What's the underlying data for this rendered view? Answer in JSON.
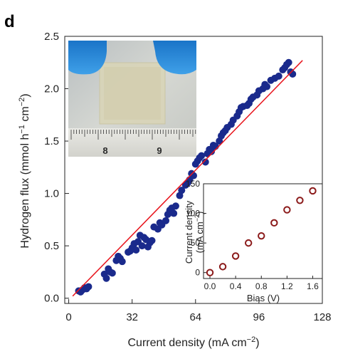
{
  "panel_label": "d",
  "chart_data": [
    {
      "type": "scatter",
      "title": "",
      "xlabel": "Current density (mA cm⁻²)",
      "ylabel": "Hydrogen flux (mmol h⁻¹ cm⁻²)",
      "xlim": [
        -2,
        128
      ],
      "ylim": [
        -0.05,
        2.5
      ],
      "xticks": [
        0,
        32,
        64,
        96,
        128
      ],
      "yticks": [
        0.0,
        0.5,
        1.0,
        1.5,
        2.0,
        2.5
      ],
      "xtick_labels": [
        "0",
        "32",
        "64",
        "96",
        "128"
      ],
      "ytick_labels": [
        "0.0",
        "0.5",
        "1.0",
        "1.5",
        "2.0",
        "2.5"
      ],
      "marker_color": "#1a2a8c",
      "line_color": "#e8141c",
      "fit_line": {
        "x": [
          2,
          118
        ],
        "y": [
          0.02,
          2.27
        ]
      },
      "points": [
        [
          5,
          0.07
        ],
        [
          6,
          0.06
        ],
        [
          7,
          0.08
        ],
        [
          8,
          0.1
        ],
        [
          9,
          0.09
        ],
        [
          10,
          0.11
        ],
        [
          18,
          0.23
        ],
        [
          19,
          0.19
        ],
        [
          20,
          0.28
        ],
        [
          21,
          0.25
        ],
        [
          22,
          0.24
        ],
        [
          24,
          0.36
        ],
        [
          25,
          0.4
        ],
        [
          26,
          0.38
        ],
        [
          27,
          0.35
        ],
        [
          30,
          0.44
        ],
        [
          31,
          0.45
        ],
        [
          32,
          0.48
        ],
        [
          33,
          0.52
        ],
        [
          34,
          0.46
        ],
        [
          35,
          0.54
        ],
        [
          36,
          0.6
        ],
        [
          37,
          0.5
        ],
        [
          38,
          0.58
        ],
        [
          39,
          0.56
        ],
        [
          40,
          0.49
        ],
        [
          41,
          0.53
        ],
        [
          42,
          0.55
        ],
        [
          43,
          0.68
        ],
        [
          45,
          0.66
        ],
        [
          46,
          0.72
        ],
        [
          47,
          0.7
        ],
        [
          49,
          0.74
        ],
        [
          50,
          0.8
        ],
        [
          51,
          0.84
        ],
        [
          52,
          0.86
        ],
        [
          53,
          0.81
        ],
        [
          54,
          0.88
        ],
        [
          56,
          0.98
        ],
        [
          57,
          1.03
        ],
        [
          59,
          1.08
        ],
        [
          60,
          1.1
        ],
        [
          61,
          1.13
        ],
        [
          62,
          1.19
        ],
        [
          63,
          1.17
        ],
        [
          64,
          1.28
        ],
        [
          65,
          1.31
        ],
        [
          66,
          1.34
        ],
        [
          67,
          1.36
        ],
        [
          69,
          1.3
        ],
        [
          70,
          1.38
        ],
        [
          71,
          1.42
        ],
        [
          72,
          1.4
        ],
        [
          73,
          1.46
        ],
        [
          74,
          1.45
        ],
        [
          76,
          1.5
        ],
        [
          77,
          1.55
        ],
        [
          78,
          1.58
        ],
        [
          79,
          1.6
        ],
        [
          80,
          1.63
        ],
        [
          82,
          1.66
        ],
        [
          83,
          1.7
        ],
        [
          85,
          1.74
        ],
        [
          86,
          1.78
        ],
        [
          87,
          1.82
        ],
        [
          88,
          1.83
        ],
        [
          90,
          1.84
        ],
        [
          91,
          1.86
        ],
        [
          92,
          1.9
        ],
        [
          93,
          1.92
        ],
        [
          95,
          1.94
        ],
        [
          96,
          1.98
        ],
        [
          98,
          2.0
        ],
        [
          99,
          2.04
        ],
        [
          100,
          2.02
        ],
        [
          102,
          2.08
        ],
        [
          104,
          2.1
        ],
        [
          106,
          2.12
        ],
        [
          108,
          2.18
        ],
        [
          109,
          2.2
        ],
        [
          110,
          2.23
        ],
        [
          111,
          2.25
        ],
        [
          112,
          2.16
        ],
        [
          113,
          2.14
        ]
      ]
    },
    {
      "type": "scatter",
      "title": "",
      "xlabel": "Bias (V)",
      "ylabel": "Current density (mA cm⁻²)",
      "xlim": [
        -0.1,
        1.75
      ],
      "ylim": [
        -10,
        150
      ],
      "xticks": [
        0.0,
        0.4,
        0.8,
        1.2,
        1.6
      ],
      "yticks": [
        0,
        50,
        100,
        150
      ],
      "xtick_labels": [
        "0.0",
        "0.4",
        "0.8",
        "1.2",
        "1.6"
      ],
      "ytick_labels": [
        "0",
        "50",
        "100",
        "150"
      ],
      "marker_color": "#8b1a1a",
      "points": [
        [
          0.0,
          0
        ],
        [
          0.2,
          10
        ],
        [
          0.4,
          28
        ],
        [
          0.6,
          50
        ],
        [
          0.8,
          62
        ],
        [
          1.0,
          84
        ],
        [
          1.2,
          106
        ],
        [
          1.4,
          122
        ],
        [
          1.6,
          138
        ]
      ]
    }
  ],
  "photo": {
    "description_icon": "membrane-photo",
    "ruler_labels": [
      "8",
      "9"
    ],
    "glove_color": "#1f86d6"
  }
}
